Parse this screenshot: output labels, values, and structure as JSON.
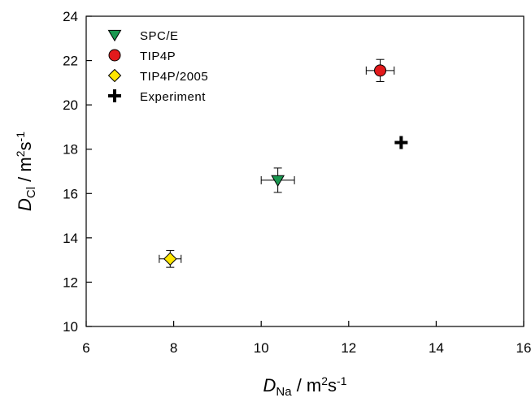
{
  "chart_data": {
    "type": "scatter",
    "title": "",
    "xlabel": {
      "var": "D",
      "sub": "Na",
      "unit_pre": " / m",
      "sup1": "2",
      "unit_mid": "s",
      "sup2": "-1"
    },
    "ylabel": {
      "var": "D",
      "sub": "Cl",
      "unit_pre": " / m",
      "sup1": "2",
      "unit_mid": "s",
      "sup2": "-1"
    },
    "xlim": [
      6,
      16
    ],
    "ylim": [
      10,
      24
    ],
    "xticks": [
      "6",
      "8",
      "10",
      "12",
      "14",
      "16"
    ],
    "yticks": [
      "10",
      "12",
      "14",
      "16",
      "18",
      "20",
      "22",
      "24"
    ],
    "grid": false,
    "legend_position": "top-left",
    "series": [
      {
        "name": "SPC/E",
        "marker": "triangle-down",
        "color": "#1a9850",
        "x": 10.38,
        "y": 16.6,
        "xerr": 0.38,
        "yerr": 0.55
      },
      {
        "name": "TIP4P",
        "marker": "circle",
        "color": "#e31a1c",
        "x": 12.72,
        "y": 21.55,
        "xerr": 0.32,
        "yerr": 0.5
      },
      {
        "name": "TIP4P/2005",
        "marker": "diamond",
        "color": "#ffe600",
        "x": 7.92,
        "y": 13.05,
        "xerr": 0.25,
        "yerr": 0.38
      },
      {
        "name": "Experiment",
        "marker": "plus",
        "color": "#000000",
        "x": 13.2,
        "y": 18.3
      }
    ]
  }
}
